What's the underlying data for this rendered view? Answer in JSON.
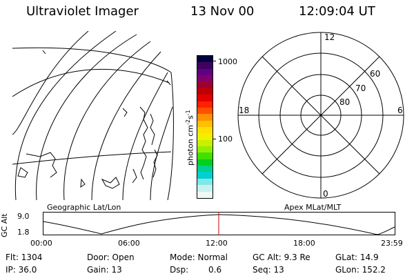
{
  "header": {
    "instrument": "Ultraviolet Imager",
    "date": "13 Nov 00",
    "time": "12:09:04 UT"
  },
  "colorbar": {
    "label_main": "photon cm",
    "label_exp1": "-2",
    "label_mid": "s",
    "label_exp2": "-1",
    "tick_top": "1000",
    "tick_mid": "100",
    "colors": [
      "#000040",
      "#400060",
      "#600080",
      "#800070",
      "#a00030",
      "#c00000",
      "#e00000",
      "#ff2000",
      "#ff5000",
      "#ff9000",
      "#ffc000",
      "#ffe000",
      "#f0f000",
      "#c8f000",
      "#90f000",
      "#40e000",
      "#00d020",
      "#00d090",
      "#00d0d0",
      "#80e8e8",
      "#c8f0f0",
      "#f0f8f8"
    ]
  },
  "polar_plot": {
    "mlt_top": "12",
    "mlt_left": "18",
    "mlt_right": "6",
    "mlt_bottom": "0",
    "lat_60": "60",
    "lat_70": "70",
    "lat_80": "80"
  },
  "panel_labels": {
    "left": "Geographic Lat/Lon",
    "right": "Apex MLat/MLT"
  },
  "altitude_plot": {
    "ylabel": "GC Alt",
    "y_top": "9.0",
    "y_bottom": "1.8",
    "x_ticks": [
      "00:00",
      "06:00",
      "12:00",
      "18:00",
      "23:59"
    ],
    "current_time_marker": "12:09",
    "marker_color": "#d00000"
  },
  "info": {
    "row1": {
      "flt": "Flt: 1304",
      "door": "Door: Open",
      "mode": "Mode: Normal",
      "gcalt": "GC Alt: 9.3 Re",
      "glat": "GLat:  14.9"
    },
    "row2": {
      "ip": "IP: 36.0",
      "gain": "Gain: 13",
      "dsp_label": "Dsp:",
      "dsp_value": "0.6",
      "seq": "Seq: 13",
      "glon": "GLon: 152.2"
    }
  }
}
